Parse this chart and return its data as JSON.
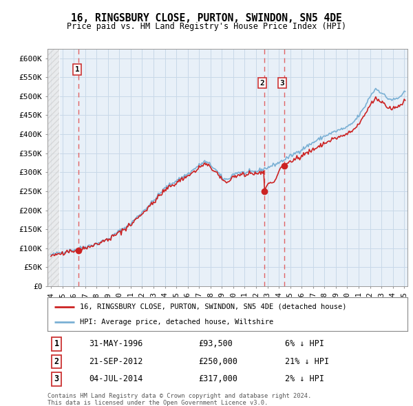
{
  "title": "16, RINGSBURY CLOSE, PURTON, SWINDON, SN5 4DE",
  "subtitle": "Price paid vs. HM Land Registry's House Price Index (HPI)",
  "ylim": [
    0,
    625000
  ],
  "yticks": [
    0,
    50000,
    100000,
    150000,
    200000,
    250000,
    300000,
    350000,
    400000,
    450000,
    500000,
    550000,
    600000
  ],
  "ytick_labels": [
    "£0",
    "£50K",
    "£100K",
    "£150K",
    "£200K",
    "£250K",
    "£300K",
    "£350K",
    "£400K",
    "£450K",
    "£500K",
    "£550K",
    "£600K"
  ],
  "xlim_start": 1994.0,
  "xlim_end": 2025.3,
  "xticks": [
    1994,
    1995,
    1996,
    1997,
    1998,
    1999,
    2000,
    2001,
    2002,
    2003,
    2004,
    2005,
    2006,
    2007,
    2008,
    2009,
    2010,
    2011,
    2012,
    2013,
    2014,
    2015,
    2016,
    2017,
    2018,
    2019,
    2020,
    2021,
    2022,
    2023,
    2024,
    2025
  ],
  "hpi_color": "#7ab0d4",
  "price_color": "#cc2222",
  "vline_color": "#e05555",
  "grid_color": "#c8d8e8",
  "bg_color": "#e8f0f8",
  "hatch_left_end": 1994.75,
  "sale_points": [
    {
      "label": "1",
      "year": 1996.42,
      "price": 93500
    },
    {
      "label": "2",
      "year": 2012.72,
      "price": 250000
    },
    {
      "label": "3",
      "year": 2014.5,
      "price": 317000
    }
  ],
  "table_data": [
    {
      "num": "1",
      "date": "31-MAY-1996",
      "price": "£93,500",
      "hpi": "6% ↓ HPI"
    },
    {
      "num": "2",
      "date": "21-SEP-2012",
      "price": "£250,000",
      "hpi": "21% ↓ HPI"
    },
    {
      "num": "3",
      "date": "04-JUL-2014",
      "price": "£317,000",
      "hpi": "2% ↓ HPI"
    }
  ],
  "legend_line1": "16, RINGSBURY CLOSE, PURTON, SWINDON, SN5 4DE (detached house)",
  "legend_line2": "HPI: Average price, detached house, Wiltshire",
  "footnote": "Contains HM Land Registry data © Crown copyright and database right 2024.\nThis data is licensed under the Open Government Licence v3.0."
}
